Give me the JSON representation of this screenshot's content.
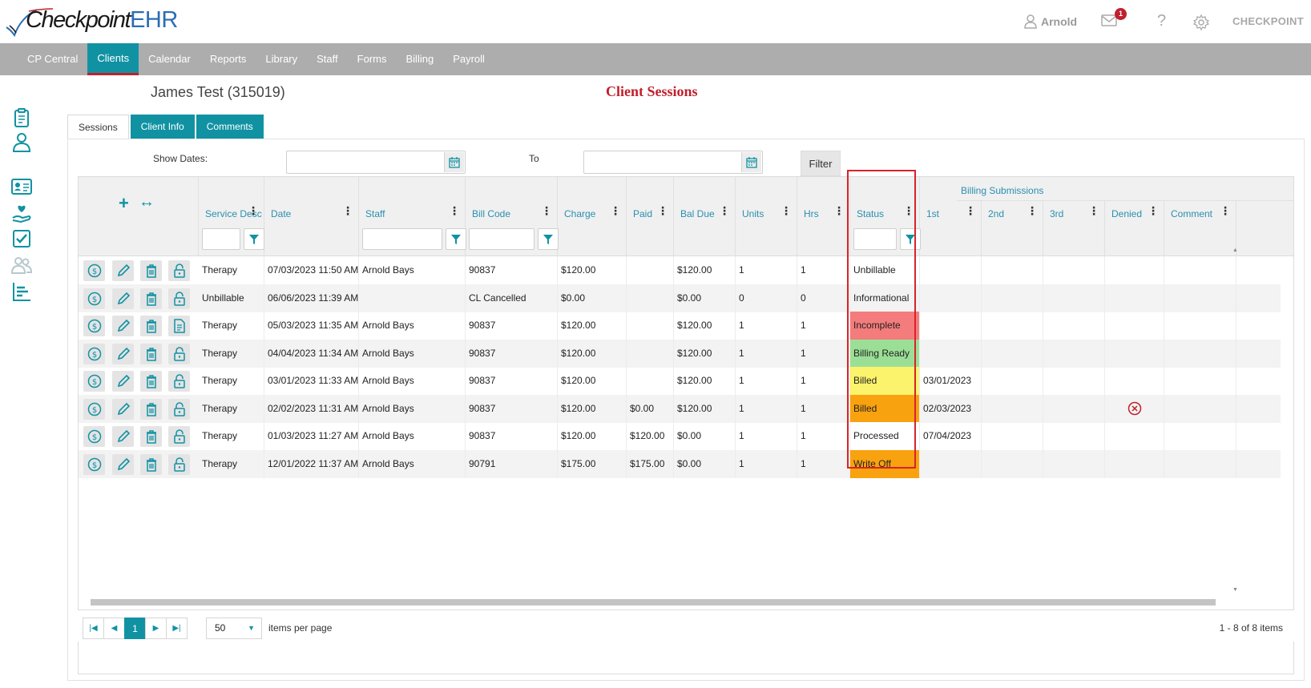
{
  "app": {
    "brand_main": "Checkpoint",
    "brand_suffix": "EHR"
  },
  "header": {
    "user_name": "Arnold",
    "mail_count": "1",
    "help": "?",
    "org": "CHECKPOINT"
  },
  "nav": {
    "items": [
      "CP Central",
      "Clients",
      "Calendar",
      "Reports",
      "Library",
      "Staff",
      "Forms",
      "Billing",
      "Payroll"
    ],
    "active": "Clients"
  },
  "client": {
    "name": "James Test (315019)"
  },
  "page": {
    "title": "Client Sessions"
  },
  "tabs": [
    "Sessions",
    "Client Info",
    "Comments"
  ],
  "filters": {
    "show_dates_label": "Show Dates:",
    "from_value": "",
    "to_label": "To",
    "to_value": "",
    "filter_button": "Filter"
  },
  "grid": {
    "billing_group": "Billing Submissions",
    "columns": [
      "Service Desc",
      "Date",
      "Staff",
      "Bill Code",
      "Charge",
      "Paid",
      "Bal Due",
      "Units",
      "Hrs",
      "Status",
      "1st",
      "2nd",
      "3rd",
      "Denied",
      "Comment"
    ],
    "rows": [
      {
        "service": "Therapy",
        "date": "07/03/2023 11:50 AM",
        "staff": "Arnold Bays",
        "bill_code": "90837",
        "charge": "$120.00",
        "paid": "",
        "bal_due": "$120.00",
        "units": "1",
        "hrs": "1",
        "status": "Unbillable",
        "status_color": "#ffffff",
        "first": "",
        "second": "",
        "third": "",
        "denied": false,
        "comment": "",
        "lock_icon": "lock-icon"
      },
      {
        "service": "Unbillable",
        "date": "06/06/2023 11:39 AM",
        "staff": "",
        "bill_code": "CL Cancelled",
        "charge": "$0.00",
        "paid": "",
        "bal_due": "$0.00",
        "units": "0",
        "hrs": "0",
        "status": "Informational",
        "status_color": "#f3f3f3",
        "first": "",
        "second": "",
        "third": "",
        "denied": false,
        "comment": "",
        "lock_icon": "lock-icon"
      },
      {
        "service": "Therapy",
        "date": "05/03/2023 11:35 AM",
        "staff": "Arnold Bays",
        "bill_code": "90837",
        "charge": "$120.00",
        "paid": "",
        "bal_due": "$120.00",
        "units": "1",
        "hrs": "1",
        "status": "Incomplete",
        "status_color": "#f47c7c",
        "first": "",
        "second": "",
        "third": "",
        "denied": false,
        "comment": "",
        "lock_icon": "document-icon"
      },
      {
        "service": "Therapy",
        "date": "04/04/2023 11:34 AM",
        "staff": "Arnold Bays",
        "bill_code": "90837",
        "charge": "$120.00",
        "paid": "",
        "bal_due": "$120.00",
        "units": "1",
        "hrs": "1",
        "status": "Billing Ready",
        "status_color": "#9bdf96",
        "first": "",
        "second": "",
        "third": "",
        "denied": false,
        "comment": "",
        "lock_icon": "lock-icon"
      },
      {
        "service": "Therapy",
        "date": "03/01/2023 11:33 AM",
        "staff": "Arnold Bays",
        "bill_code": "90837",
        "charge": "$120.00",
        "paid": "",
        "bal_due": "$120.00",
        "units": "1",
        "hrs": "1",
        "status": "Billed",
        "status_color": "#fbf36b",
        "first": "03/01/2023",
        "second": "",
        "third": "",
        "denied": false,
        "comment": "",
        "lock_icon": "lock-icon"
      },
      {
        "service": "Therapy",
        "date": "02/02/2023 11:31 AM",
        "staff": "Arnold Bays",
        "bill_code": "90837",
        "charge": "$120.00",
        "paid": "$0.00",
        "bal_due": "$120.00",
        "units": "1",
        "hrs": "1",
        "status": "Billed",
        "status_color": "#f9a20f",
        "first": "02/03/2023",
        "second": "",
        "third": "",
        "denied": true,
        "comment": "",
        "lock_icon": "lock-icon"
      },
      {
        "service": "Therapy",
        "date": "01/03/2023 11:27 AM",
        "staff": "Arnold Bays",
        "bill_code": "90837",
        "charge": "$120.00",
        "paid": "$120.00",
        "bal_due": "$0.00",
        "units": "1",
        "hrs": "1",
        "status": "Processed",
        "status_color": "#ffffff",
        "first": "07/04/2023",
        "second": "",
        "third": "",
        "denied": false,
        "comment": "",
        "lock_icon": "lock-icon"
      },
      {
        "service": "Therapy",
        "date": "12/01/2022 11:37 AM",
        "staff": "Arnold Bays",
        "bill_code": "90791",
        "charge": "$175.00",
        "paid": "$175.00",
        "bal_due": "$0.00",
        "units": "1",
        "hrs": "1",
        "status": "Write Off",
        "status_color": "#f9a20f",
        "first": "",
        "second": "",
        "third": "",
        "denied": false,
        "comment": "",
        "lock_icon": "lock-icon"
      }
    ]
  },
  "pager": {
    "current_page": "1",
    "page_size": "50",
    "items_per_page_label": "items per page",
    "count_text": "1 - 8 of 8 items"
  },
  "colors": {
    "accent": "#1192a3",
    "nav_bg": "#adadad",
    "title_red": "#c0202c",
    "highlight_border": "#d8232a"
  }
}
